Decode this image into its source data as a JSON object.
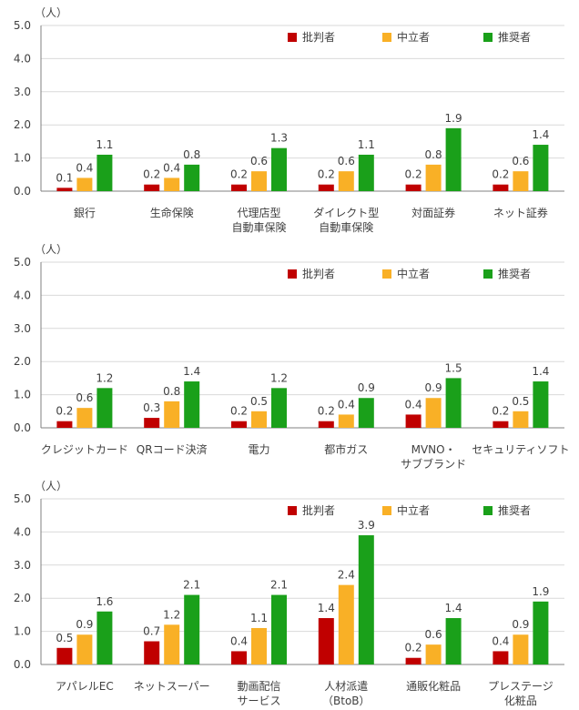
{
  "colors": {
    "critic": "#c00000",
    "neutral": "#f9b026",
    "promoter": "#1aa01a",
    "axis": "#808080",
    "grid": "#d9d9d9",
    "text": "#404040"
  },
  "chart_data": [
    {
      "type": "bar",
      "unit_label": "（人）",
      "ylim": [
        0,
        5
      ],
      "yticks": [
        "0.0",
        "1.0",
        "2.0",
        "3.0",
        "4.0",
        "5.0"
      ],
      "legend_position": "top-right",
      "categories": [
        [
          "銀行"
        ],
        [
          "生命保険"
        ],
        [
          "代理店型",
          "自動車保険"
        ],
        [
          "ダイレクト型",
          "自動車保険"
        ],
        [
          "対面証券"
        ],
        [
          "ネット証券"
        ]
      ],
      "series": [
        {
          "name": "批判者",
          "values": [
            0.1,
            0.2,
            0.2,
            0.2,
            0.2,
            0.2
          ]
        },
        {
          "name": "中立者",
          "values": [
            0.4,
            0.4,
            0.6,
            0.6,
            0.8,
            0.6
          ]
        },
        {
          "name": "推奨者",
          "values": [
            1.1,
            0.8,
            1.3,
            1.1,
            1.9,
            1.4
          ]
        }
      ]
    },
    {
      "type": "bar",
      "unit_label": "（人）",
      "ylim": [
        0,
        5
      ],
      "yticks": [
        "0.0",
        "1.0",
        "2.0",
        "3.0",
        "4.0",
        "5.0"
      ],
      "legend_position": "top-right",
      "categories": [
        [
          "クレジットカード"
        ],
        [
          "QRコード決済"
        ],
        [
          "電力"
        ],
        [
          "都市ガス"
        ],
        [
          "MVNO・",
          "サブブランド"
        ],
        [
          "セキュリティソフト"
        ]
      ],
      "series": [
        {
          "name": "批判者",
          "values": [
            0.2,
            0.3,
            0.2,
            0.2,
            0.4,
            0.2
          ]
        },
        {
          "name": "中立者",
          "values": [
            0.6,
            0.8,
            0.5,
            0.4,
            0.9,
            0.5
          ]
        },
        {
          "name": "推奨者",
          "values": [
            1.2,
            1.4,
            1.2,
            0.9,
            1.5,
            1.4
          ]
        }
      ]
    },
    {
      "type": "bar",
      "unit_label": "（人）",
      "ylim": [
        0,
        5
      ],
      "yticks": [
        "0.0",
        "1.0",
        "2.0",
        "3.0",
        "4.0",
        "5.0"
      ],
      "legend_position": "top-right",
      "categories": [
        [
          "アパレルEC"
        ],
        [
          "ネットスーパー"
        ],
        [
          "動画配信",
          "サービス"
        ],
        [
          "人材派遣",
          "（BtoB）"
        ],
        [
          "通販化粧品"
        ],
        [
          "プレステージ",
          "化粧品"
        ]
      ],
      "series": [
        {
          "name": "批判者",
          "values": [
            0.5,
            0.7,
            0.4,
            1.4,
            0.2,
            0.4
          ]
        },
        {
          "name": "中立者",
          "values": [
            0.9,
            1.2,
            1.1,
            2.4,
            0.6,
            0.9
          ]
        },
        {
          "name": "推奨者",
          "values": [
            1.6,
            2.1,
            2.1,
            3.9,
            1.4,
            1.9
          ]
        }
      ]
    }
  ]
}
